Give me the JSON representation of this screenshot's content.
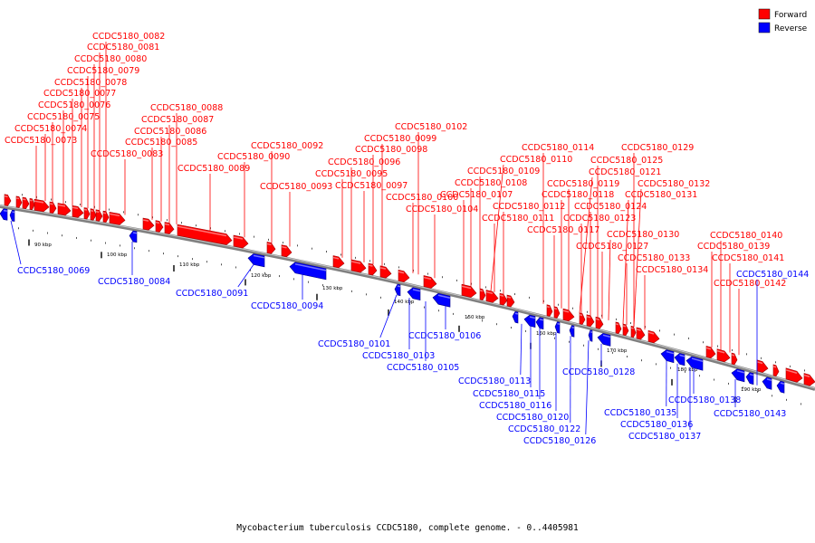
{
  "caption": "Mycobacterium tuberculosis CCDC5180, complete genome. - 0..4405981",
  "legend": [
    {
      "label": "Forward",
      "color": "#ff0000"
    },
    {
      "label": "Reverse",
      "color": "#0000ff"
    }
  ],
  "colors": {
    "forward": "#ff0000",
    "reverse": "#0000ff",
    "backbone": "#808080"
  },
  "ticks": [
    "90 kbp",
    "100 kbp",
    "110 kbp",
    "120 kbp",
    "130 kbp",
    "140 kbp",
    "150 kbp",
    "160 kbp",
    "170 kbp",
    "180 kbp",
    "190 kbp"
  ],
  "forward_genes": [
    "CCDC5180_0073",
    "CCDC5180_0074",
    "CCDC5180_0075",
    "CCDC5180_0076",
    "CCDC5180_0077",
    "CCDC5180_0078",
    "CCDC5180_0079",
    "CCDC5180_0080",
    "CCDC5180_0081",
    "CCDC5180_0082",
    "CCDC5180_0083",
    "CCDC5180_0085",
    "CCDC5180_0086",
    "CCDC5180_0087",
    "CCDC5180_0088",
    "CCDC5180_0089",
    "CCDC5180_0090",
    "CCDC5180_0092",
    "CCDC5180_0093",
    "CCDC5180_0095",
    "CCDC5180_0096",
    "CCDC5180_0097",
    "CCDC5180_0098",
    "CCDC5180_0099",
    "CCDC5180_0100",
    "CCDC5180_0102",
    "CCDC5180_0104",
    "CCDC5180_0107",
    "CCDC5180_0108",
    "CCDC5180_0109",
    "CCDC5180_0110",
    "CCDC5180_0111",
    "CCDC5180_0112",
    "CCDC5180_0114",
    "CCDC5180_0117",
    "CCDC5180_0118",
    "CCDC5180_0119",
    "CCDC5180_0121",
    "CCDC5180_0123",
    "CCDC5180_0124",
    "CCDC5180_0125",
    "CCDC5180_0127",
    "CCDC5180_0129",
    "CCDC5180_0130",
    "CCDC5180_0131",
    "CCDC5180_0132",
    "CCDC5180_0133",
    "CCDC5180_0134",
    "CCDC5180_0139",
    "CCDC5180_0140",
    "CCDC5180_0141",
    "CCDC5180_0142"
  ],
  "reverse_genes": [
    "CCDC5180_0069",
    "CCDC5180_0084",
    "CCDC5180_0091",
    "CCDC5180_0094",
    "CCDC5180_0101",
    "CCDC5180_0103",
    "CCDC5180_0105",
    "CCDC5180_0106",
    "CCDC5180_0113",
    "CCDC5180_0115",
    "CCDC5180_0116",
    "CCDC5180_0120",
    "CCDC5180_0122",
    "CCDC5180_0126",
    "CCDC5180_0128",
    "CCDC5180_0135",
    "CCDC5180_0136",
    "CCDC5180_0137",
    "CCDC5180_0138",
    "CCDC5180_0143",
    "CCDC5180_0144"
  ]
}
